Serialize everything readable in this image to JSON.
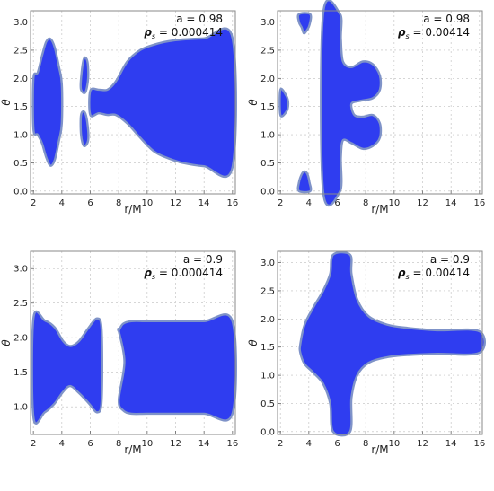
{
  "colors": {
    "region_fill": "#2f3df0",
    "region_edge": "#7f93c8",
    "frame": "#8a8a8a"
  },
  "chart_data": [
    {
      "type": "area",
      "xlabel": "r/M",
      "ylabel": "θ",
      "xlim": [
        1.8,
        16.2
      ],
      "ylim": [
        -0.05,
        3.2
      ],
      "xticks": [
        "2",
        "4",
        "6",
        "8",
        "10",
        "12",
        "14",
        "16"
      ],
      "yticks": [
        "0.0",
        "0.5",
        "1.0",
        "1.5",
        "2.0",
        "2.5",
        "3.0"
      ],
      "annotation_a": "a = 0.98",
      "annotation_rho": "= 0.000414",
      "regions": [
        {
          "x": [
            2.0,
            2.3,
            2.6,
            2.9,
            3.2,
            3.5,
            3.8,
            4.0,
            4.0,
            3.8,
            3.5,
            3.2,
            2.9,
            2.6,
            2.3,
            2.0
          ],
          "y": [
            2.0,
            2.1,
            2.4,
            2.65,
            2.7,
            2.55,
            2.2,
            1.9,
            1.2,
            0.9,
            0.55,
            0.45,
            0.6,
            0.85,
            1.0,
            1.1
          ]
        },
        {
          "x": [
            5.35,
            5.55,
            5.8,
            5.85,
            5.65,
            5.35
          ],
          "y": [
            2.0,
            2.35,
            2.3,
            2.0,
            1.75,
            1.8
          ]
        },
        {
          "x": [
            5.35,
            5.6,
            5.8,
            5.85,
            5.55,
            5.35
          ],
          "y": [
            1.35,
            1.4,
            1.2,
            0.9,
            0.8,
            1.0
          ]
        },
        {
          "x": [
            6.0,
            6.6,
            7.2,
            7.8,
            8.6,
            9.5,
            10.5,
            11.5,
            12.5,
            14.0,
            16.0,
            16.0,
            14.0,
            12.5,
            11.5,
            10.5,
            9.5,
            8.6,
            7.8,
            7.2,
            6.6,
            6.0
          ],
          "y": [
            1.78,
            1.8,
            1.8,
            1.95,
            2.3,
            2.5,
            2.6,
            2.66,
            2.69,
            2.71,
            2.72,
            0.42,
            0.44,
            0.5,
            0.58,
            0.7,
            0.95,
            1.2,
            1.35,
            1.35,
            1.38,
            1.35
          ]
        }
      ]
    },
    {
      "type": "area",
      "xlabel": "r/M",
      "ylabel": "θ",
      "xlim": [
        1.8,
        16.2
      ],
      "ylim": [
        -0.05,
        3.2
      ],
      "xticks": [
        "2",
        "4",
        "6",
        "8",
        "10",
        "12",
        "14",
        "16"
      ],
      "yticks": [
        "0.0",
        "0.5",
        "1.0",
        "1.5",
        "2.0",
        "2.5",
        "3.0"
      ],
      "annotation_a": "a = 0.98",
      "annotation_rho": "= 0.00414",
      "regions": [
        {
          "x": [
            2.0,
            2.4,
            2.55,
            2.4,
            2.0
          ],
          "y": [
            1.8,
            1.7,
            1.55,
            1.4,
            1.35
          ]
        },
        {
          "x": [
            3.3,
            4.1,
            4.05,
            3.85,
            3.65,
            3.5,
            3.3
          ],
          "y": [
            3.14,
            3.14,
            2.95,
            2.85,
            2.8,
            2.9,
            3.0
          ]
        },
        {
          "x": [
            3.3,
            3.5,
            3.7,
            3.9,
            4.05,
            4.1,
            3.3
          ],
          "y": [
            0.15,
            0.3,
            0.35,
            0.3,
            0.15,
            0.0,
            0.0
          ]
        },
        {
          "x": [
            5.0,
            6.2,
            6.25,
            6.4,
            7.0,
            7.8,
            8.5,
            9.0,
            9.0,
            8.5,
            7.6,
            7.0,
            7.2,
            7.8,
            8.5,
            9.0,
            9.0,
            8.5,
            7.8,
            7.0,
            6.4,
            6.25,
            6.2,
            5.0
          ],
          "y": [
            3.14,
            3.14,
            2.7,
            2.3,
            2.2,
            2.3,
            2.25,
            2.05,
            1.8,
            1.65,
            1.6,
            1.55,
            1.35,
            1.32,
            1.35,
            1.2,
            0.95,
            0.8,
            0.75,
            0.85,
            0.9,
            0.6,
            0.0,
            0.0
          ]
        }
      ]
    },
    {
      "type": "area",
      "xlabel": "r/M",
      "ylabel": "θ",
      "xlim": [
        1.8,
        16.2
      ],
      "ylim": [
        0.6,
        3.25
      ],
      "xticks": [
        "2",
        "4",
        "6",
        "8",
        "10",
        "12",
        "14",
        "16"
      ],
      "yticks": [
        "1.0",
        "1.5",
        "2.0",
        "2.5",
        "3.0"
      ],
      "annotation_a": "a = 0.9",
      "annotation_rho": "= 0.000414",
      "regions": [
        {
          "x": [
            2.0,
            2.8,
            3.5,
            4.1,
            4.6,
            5.2,
            5.9,
            6.5,
            6.8,
            6.8,
            6.5,
            5.9,
            5.2,
            4.6,
            4.1,
            3.5,
            2.8,
            2.0
          ],
          "y": [
            2.28,
            2.25,
            2.15,
            1.95,
            1.88,
            1.95,
            2.15,
            2.28,
            2.1,
            1.1,
            0.92,
            1.05,
            1.2,
            1.3,
            1.22,
            1.05,
            0.92,
            0.85
          ]
        },
        {
          "x": [
            8.0,
            8.3,
            8.9,
            10.0,
            12.0,
            14.0,
            16.0,
            16.0,
            14.0,
            12.0,
            10.0,
            8.9,
            8.3,
            8.0,
            8.4,
            8.0
          ],
          "y": [
            2.1,
            2.2,
            2.24,
            2.24,
            2.24,
            2.24,
            2.24,
            0.9,
            0.9,
            0.9,
            0.9,
            0.9,
            0.95,
            1.1,
            1.65,
            2.1
          ]
        }
      ]
    },
    {
      "type": "area",
      "xlabel": "r/M",
      "ylabel": "θ",
      "xlim": [
        1.8,
        16.2
      ],
      "ylim": [
        -0.05,
        3.2
      ],
      "xticks": [
        "2",
        "4",
        "6",
        "8",
        "10",
        "12",
        "14",
        "16"
      ],
      "yticks": [
        "0.0",
        "0.5",
        "1.0",
        "1.5",
        "2.0",
        "2.5",
        "3.0"
      ],
      "annotation_a": "a = 0.9",
      "annotation_rho": "= 0.00414",
      "regions": [
        {
          "x": [
            3.4,
            3.7,
            4.3,
            5.0,
            5.5,
            5.7,
            6.9,
            7.0,
            7.4,
            8.2,
            9.5,
            11.0,
            13.0,
            16.0,
            16.0,
            13.0,
            11.0,
            9.5,
            8.2,
            7.4,
            7.0,
            6.9,
            5.7,
            5.5,
            5.0,
            4.3,
            3.7,
            3.4
          ],
          "y": [
            1.55,
            1.9,
            2.2,
            2.5,
            2.8,
            3.14,
            3.14,
            2.8,
            2.35,
            2.05,
            1.9,
            1.84,
            1.8,
            1.78,
            1.4,
            1.38,
            1.36,
            1.32,
            1.22,
            1.0,
            0.6,
            0.0,
            0.0,
            0.5,
            0.85,
            1.05,
            1.2,
            1.4
          ]
        }
      ]
    }
  ]
}
